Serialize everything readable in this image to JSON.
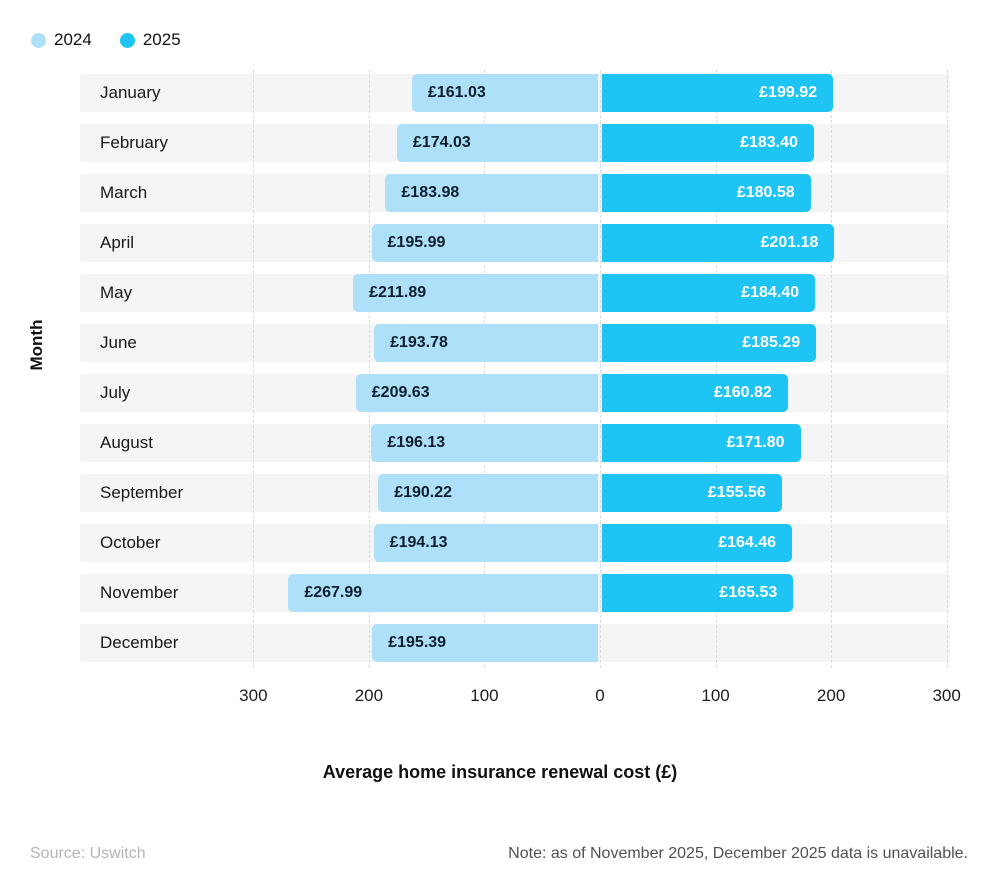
{
  "colors": {
    "series_2024": "#aee1f9",
    "series_2025": "#1ec4f3",
    "row_band": "#f5f5f6",
    "gridline": "#dcdcdc",
    "label_on_light": "#0d1f2e",
    "label_on_dark": "#ffffff"
  },
  "chart_data": {
    "type": "bar",
    "variant": "diverging-horizontal",
    "title": "",
    "xlabel": "Average home insurance renewal cost (£)",
    "ylabel": "Month",
    "legend_position": "top-left",
    "grid": "dashed-vertical",
    "categories": [
      "January",
      "February",
      "March",
      "April",
      "May",
      "June",
      "July",
      "August",
      "September",
      "October",
      "November",
      "December"
    ],
    "series": [
      {
        "name": "2024",
        "direction": "left",
        "color": "#aee1f9",
        "label_color": "#0d1f2e",
        "values": [
          161.03,
          174.03,
          183.98,
          195.99,
          211.89,
          193.78,
          209.63,
          196.13,
          190.22,
          194.13,
          267.99,
          195.39
        ],
        "labels": [
          "£161.03",
          "£174.03",
          "£183.98",
          "£195.99",
          "£211.89",
          "£193.78",
          "£209.63",
          "£196.13",
          "£190.22",
          "£194.13",
          "£267.99",
          "£195.39"
        ]
      },
      {
        "name": "2025",
        "direction": "right",
        "color": "#1ec4f3",
        "label_color": "#ffffff",
        "values": [
          199.92,
          183.4,
          180.58,
          201.18,
          184.4,
          185.29,
          160.82,
          171.8,
          155.56,
          164.46,
          165.53,
          null
        ],
        "labels": [
          "£199.92",
          "£183.40",
          "£180.58",
          "£201.18",
          "£184.40",
          "£185.29",
          "£160.82",
          "£171.80",
          "£155.56",
          "£164.46",
          "£165.53",
          null
        ]
      }
    ],
    "x_tick_values": [
      -300,
      -200,
      -100,
      0,
      100,
      200,
      300
    ],
    "x_tick_labels": [
      "300",
      "200",
      "100",
      "0",
      "100",
      "200",
      "300"
    ],
    "x_axis_max": 300
  },
  "footer": {
    "source": "Source: Uswitch",
    "note": "Note: as of November 2025, December 2025 data is unavailable."
  }
}
